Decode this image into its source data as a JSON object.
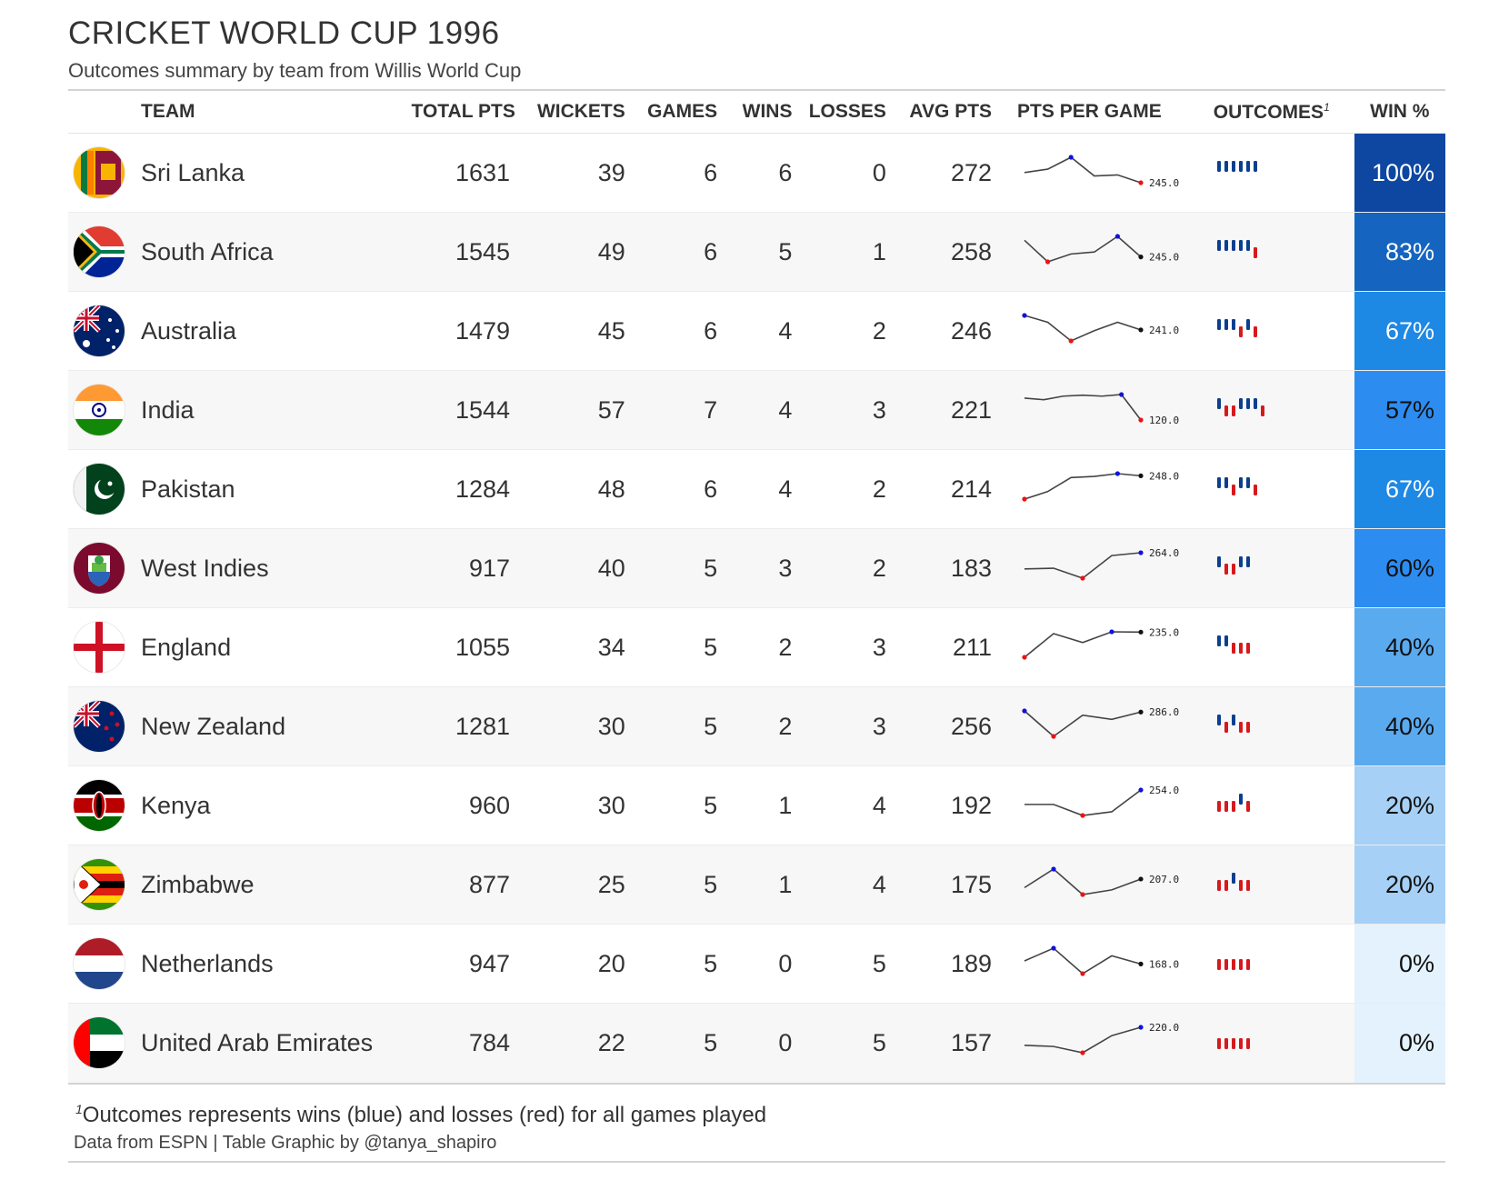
{
  "title": "CRICKET WORLD CUP 1996",
  "subtitle": "Outcomes summary by team from Willis World Cup",
  "columns": {
    "team": "TEAM",
    "total_pts": "TOTAL PTS",
    "wickets": "WICKETS",
    "games": "GAMES",
    "wins": "WINS",
    "losses": "LOSSES",
    "avg_pts": "AVG PTS",
    "pts_per_game": "PTS PER GAME",
    "outcomes": "OUTCOMES",
    "outcomes_footnote_mark": "1",
    "win_pct": "WIN %"
  },
  "colors": {
    "win": "#0b3f8f",
    "loss": "#d7191c",
    "spark_line": "#444444",
    "spark_last": "#111111",
    "spark_max": "#1111dd",
    "spark_min": "#ee1111"
  },
  "rows": [
    {
      "team": "Sri Lanka",
      "flag": "sri-lanka-flag",
      "total_pts": "1631",
      "wickets": "39",
      "games": "6",
      "wins": "6",
      "losses": "0",
      "avg_pts": "272",
      "pts_per_game": [
        275,
        285,
        320,
        265,
        268,
        245
      ],
      "last_label": "245.0",
      "outcomes": [
        1,
        1,
        1,
        1,
        1,
        1
      ],
      "win_pct": "100%",
      "win_value": 1.0,
      "win_bg": "#0d47a1",
      "win_fg": "#ffffff"
    },
    {
      "team": "South Africa",
      "flag": "south-africa-flag",
      "total_pts": "1545",
      "wickets": "49",
      "games": "6",
      "wins": "5",
      "losses": "1",
      "avg_pts": "258",
      "pts_per_game": [
        262,
        240,
        248,
        250,
        266,
        245
      ],
      "last_label": "245.0",
      "outcomes": [
        1,
        1,
        1,
        1,
        1,
        0
      ],
      "win_pct": "83%",
      "win_value": 0.83,
      "win_bg": "#1565c0",
      "win_fg": "#ffffff"
    },
    {
      "team": "Australia",
      "flag": "australia-flag",
      "total_pts": "1479",
      "wickets": "45",
      "games": "6",
      "wins": "4",
      "losses": "2",
      "avg_pts": "246",
      "pts_per_game": [
        258,
        250,
        228,
        240,
        250,
        241
      ],
      "last_label": "241.0",
      "outcomes": [
        1,
        1,
        1,
        0,
        1,
        0
      ],
      "win_pct": "67%",
      "win_value": 0.67,
      "win_bg": "#1e88e5",
      "win_fg": "#ffffff"
    },
    {
      "team": "India",
      "flag": "india-flag",
      "total_pts": "1544",
      "wickets": "57",
      "games": "7",
      "wins": "4",
      "losses": "3",
      "avg_pts": "221",
      "pts_per_game": [
        230,
        222,
        240,
        245,
        240,
        248,
        120
      ],
      "last_label": "120.0",
      "outcomes": [
        1,
        0,
        0,
        1,
        1,
        1,
        0
      ],
      "win_pct": "57%",
      "win_value": 0.57,
      "win_bg": "#2d8cf0",
      "win_fg": "#111111"
    },
    {
      "team": "Pakistan",
      "flag": "pakistan-flag",
      "total_pts": "1284",
      "wickets": "48",
      "games": "6",
      "wins": "4",
      "losses": "2",
      "avg_pts": "214",
      "pts_per_game": [
        140,
        175,
        240,
        245,
        258,
        248
      ],
      "last_label": "248.0",
      "outcomes": [
        1,
        1,
        0,
        1,
        1,
        0
      ],
      "win_pct": "67%",
      "win_value": 0.67,
      "win_bg": "#1e88e5",
      "win_fg": "#ffffff"
    },
    {
      "team": "West Indies",
      "flag": "west-indies-flag",
      "total_pts": "917",
      "wickets": "40",
      "games": "5",
      "wins": "3",
      "losses": "2",
      "avg_pts": "183",
      "pts_per_game": [
        155,
        160,
        93,
        245,
        264
      ],
      "last_label": "264.0",
      "outcomes": [
        1,
        0,
        0,
        1,
        1
      ],
      "win_pct": "60%",
      "win_value": 0.6,
      "win_bg": "#2d8cf0",
      "win_fg": "#111111"
    },
    {
      "team": "England",
      "flag": "england-flag",
      "total_pts": "1055",
      "wickets": "34",
      "games": "5",
      "wins": "2",
      "losses": "3",
      "avg_pts": "211",
      "pts_per_game": [
        150,
        230,
        200,
        236,
        235
      ],
      "last_label": "235.0",
      "outcomes": [
        1,
        1,
        0,
        0,
        0
      ],
      "win_pct": "40%",
      "win_value": 0.4,
      "win_bg": "#5aaaf0",
      "win_fg": "#111111"
    },
    {
      "team": "New Zealand",
      "flag": "new-zealand-flag",
      "total_pts": "1281",
      "wickets": "30",
      "games": "5",
      "wins": "2",
      "losses": "3",
      "avg_pts": "256",
      "pts_per_game": [
        290,
        200,
        275,
        260,
        286
      ],
      "last_label": "286.0",
      "outcomes": [
        1,
        0,
        1,
        0,
        0
      ],
      "win_pct": "40%",
      "win_value": 0.4,
      "win_bg": "#5aaaf0",
      "win_fg": "#111111"
    },
    {
      "team": "Kenya",
      "flag": "kenya-flag",
      "total_pts": "960",
      "wickets": "30",
      "games": "5",
      "wins": "1",
      "losses": "4",
      "avg_pts": "192",
      "pts_per_game": [
        195,
        195,
        150,
        165,
        254
      ],
      "last_label": "254.0",
      "outcomes": [
        0,
        0,
        0,
        1,
        0
      ],
      "win_pct": "20%",
      "win_value": 0.2,
      "win_bg": "#a6d0f5",
      "win_fg": "#111111"
    },
    {
      "team": "Zimbabwe",
      "flag": "zimbabwe-flag",
      "total_pts": "877",
      "wickets": "25",
      "games": "5",
      "wins": "1",
      "losses": "4",
      "avg_pts": "175",
      "pts_per_game": [
        170,
        250,
        140,
        160,
        207
      ],
      "last_label": "207.0",
      "outcomes": [
        0,
        0,
        1,
        0,
        0
      ],
      "win_pct": "20%",
      "win_value": 0.2,
      "win_bg": "#a6d0f5",
      "win_fg": "#111111"
    },
    {
      "team": "Netherlands",
      "flag": "netherlands-flag",
      "total_pts": "947",
      "wickets": "20",
      "games": "5",
      "wins": "0",
      "losses": "5",
      "avg_pts": "189",
      "pts_per_game": [
        180,
        230,
        130,
        200,
        168
      ],
      "last_label": "168.0",
      "outcomes": [
        0,
        0,
        0,
        0,
        0
      ],
      "win_pct": "0%",
      "win_value": 0.0,
      "win_bg": "#e3f2fd",
      "win_fg": "#111111"
    },
    {
      "team": "United Arab Emirates",
      "flag": "uae-flag",
      "total_pts": "784",
      "wickets": "22",
      "games": "5",
      "wins": "0",
      "losses": "5",
      "avg_pts": "157",
      "pts_per_game": [
        145,
        140,
        114,
        185,
        220
      ],
      "last_label": "220.0",
      "outcomes": [
        0,
        0,
        0,
        0,
        0
      ],
      "win_pct": "0%",
      "win_value": 0.0,
      "win_bg": "#e3f2fd",
      "win_fg": "#111111"
    }
  ],
  "footnote": {
    "mark": "1",
    "text": "Outcomes represents wins (blue) and losses (red) for all games played"
  },
  "source": "Data from ESPN | Table Graphic by @tanya_shapiro"
}
